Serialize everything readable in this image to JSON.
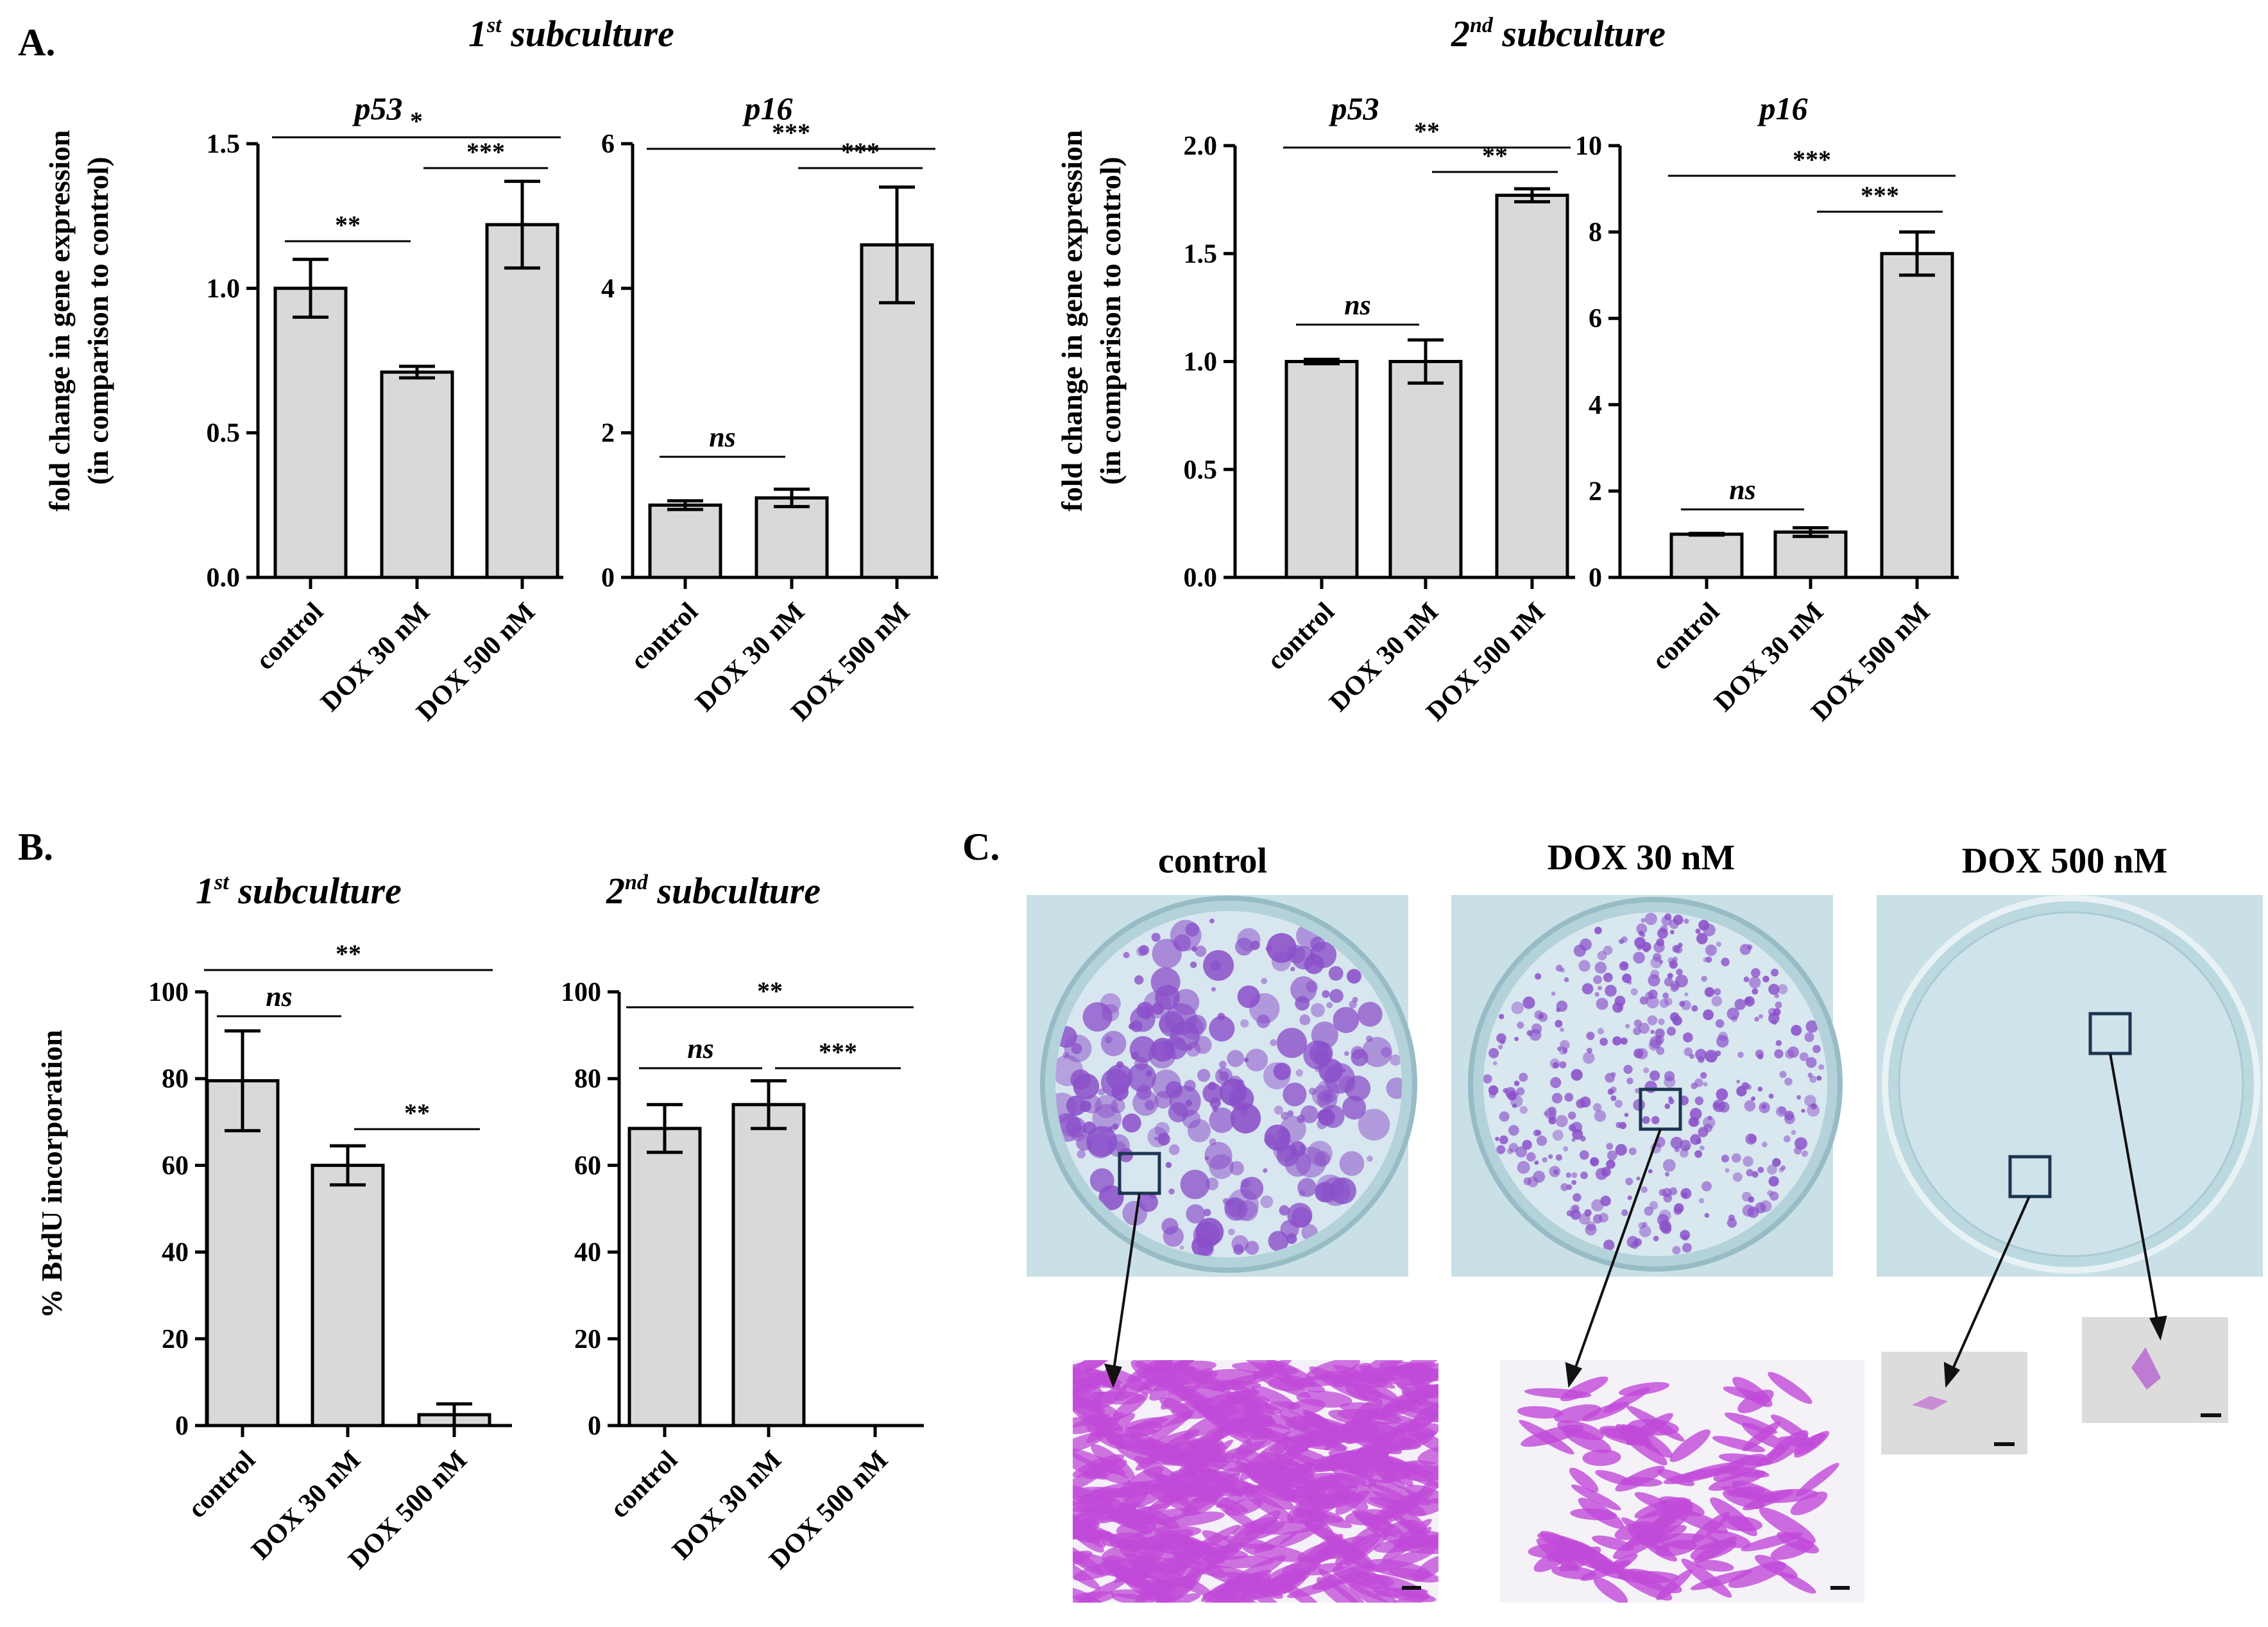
{
  "panel_labels": {
    "A": "A.",
    "B": "B.",
    "C": "C."
  },
  "subculture_titles": {
    "first": {
      "base": "1",
      "sup": "st",
      "rest": " subculture"
    },
    "second": {
      "base": "2",
      "sup": "nd",
      "rest": " subculture"
    }
  },
  "ylabels": {
    "A_line1": "fold change in gene expression",
    "A_line2": "(in comparison to control)",
    "B": "% BrdU incorporation"
  },
  "photo_titles": [
    "control",
    "DOX 30 nM",
    "DOX 500 nM"
  ],
  "colors": {
    "bar_fill": "#d9d9d9",
    "stroke": "#000000",
    "stain": "#8a4fc9",
    "dish_bg": "#c9e0e6",
    "micro": "#c04ad8",
    "box": "#1c3550"
  },
  "chart_data": [
    {
      "id": "A1_p53",
      "type": "bar",
      "title": "p53",
      "categories": [
        "control",
        "DOX 30 nM",
        "DOX 500 nM"
      ],
      "values": [
        1.0,
        0.71,
        1.22
      ],
      "errors": [
        0.1,
        0.02,
        0.15
      ],
      "ylim": [
        0,
        1.5
      ],
      "yticks": [
        0.0,
        0.5,
        1.0,
        1.5
      ],
      "ytick_labels": [
        "0.0",
        "0.5",
        "1.0",
        "1.5"
      ],
      "ylabel": "fold change in gene expression (in comparison to control)",
      "significance": [
        {
          "from": 0,
          "to": 2,
          "label": "*"
        },
        {
          "from": 0,
          "to": 1,
          "label": "**"
        },
        {
          "from": 1,
          "to": 2,
          "label": "***"
        }
      ]
    },
    {
      "id": "A1_p16",
      "type": "bar",
      "title": "p16",
      "categories": [
        "control",
        "DOX 30 nM",
        "DOX 500 nM"
      ],
      "values": [
        1.0,
        1.1,
        4.6
      ],
      "errors": [
        0.06,
        0.12,
        0.8
      ],
      "ylim": [
        0,
        6
      ],
      "yticks": [
        0,
        2,
        4,
        6
      ],
      "ytick_labels": [
        "0",
        "2",
        "4",
        "6"
      ],
      "significance": [
        {
          "from": 0,
          "to": 2,
          "label": "***"
        },
        {
          "from": 0,
          "to": 1,
          "label": "ns"
        },
        {
          "from": 1,
          "to": 2,
          "label": "***"
        }
      ]
    },
    {
      "id": "A2_p53",
      "type": "bar",
      "title": "p53",
      "categories": [
        "control",
        "DOX 30 nM",
        "DOX 500 nM"
      ],
      "values": [
        1.0,
        1.0,
        1.77
      ],
      "errors": [
        0.01,
        0.1,
        0.03
      ],
      "ylim": [
        0,
        2.0
      ],
      "yticks": [
        0.0,
        0.5,
        1.0,
        1.5,
        2.0
      ],
      "ytick_labels": [
        "0.0",
        "0.5",
        "1.0",
        "1.5",
        "2.0"
      ],
      "ylabel": "fold change in gene expression (in comparison to control)",
      "significance": [
        {
          "from": 0,
          "to": 2,
          "label": "**"
        },
        {
          "from": 0,
          "to": 1,
          "label": "ns"
        },
        {
          "from": 1,
          "to": 2,
          "label": "**"
        }
      ]
    },
    {
      "id": "A2_p16",
      "type": "bar",
      "title": "p16",
      "categories": [
        "control",
        "DOX 30 nM",
        "DOX 500 nM"
      ],
      "values": [
        1.0,
        1.05,
        7.5
      ],
      "errors": [
        0.02,
        0.1,
        0.5
      ],
      "ylim": [
        0,
        10
      ],
      "yticks": [
        0,
        2,
        4,
        6,
        8,
        10
      ],
      "ytick_labels": [
        "0",
        "2",
        "4",
        "6",
        "8",
        "10"
      ],
      "significance": [
        {
          "from": 0,
          "to": 2,
          "label": "***"
        },
        {
          "from": 0,
          "to": 1,
          "label": "ns"
        },
        {
          "from": 1,
          "to": 2,
          "label": "***"
        }
      ]
    },
    {
      "id": "B1",
      "type": "bar",
      "title": "1st subculture",
      "categories": [
        "control",
        "DOX 30 nM",
        "DOX 500 nM"
      ],
      "values": [
        79.5,
        60,
        2.5
      ],
      "errors": [
        11.5,
        4.5,
        2.5
      ],
      "ylim": [
        0,
        100
      ],
      "yticks": [
        0,
        20,
        40,
        60,
        80,
        100
      ],
      "ytick_labels": [
        "0",
        "20",
        "40",
        "60",
        "80",
        "100"
      ],
      "ylabel": "% BrdU incorporation",
      "significance": [
        {
          "from": 0,
          "to": 2,
          "label": "**"
        },
        {
          "from": 0,
          "to": 1,
          "label": "ns"
        },
        {
          "from": 1,
          "to": 2,
          "label": "**"
        }
      ]
    },
    {
      "id": "B2",
      "type": "bar",
      "title": "2nd subculture",
      "categories": [
        "control",
        "DOX 30 nM",
        "DOX 500 nM"
      ],
      "values": [
        68.5,
        74,
        0
      ],
      "errors": [
        5.5,
        5.5,
        0
      ],
      "ylim": [
        0,
        100
      ],
      "yticks": [
        0,
        20,
        40,
        60,
        80,
        100
      ],
      "ytick_labels": [
        "0",
        "20",
        "40",
        "60",
        "80",
        "100"
      ],
      "significance": [
        {
          "from": 0,
          "to": 2,
          "label": "**"
        },
        {
          "from": 0,
          "to": 1,
          "label": "ns"
        },
        {
          "from": 1,
          "to": 2,
          "label": "***"
        }
      ]
    }
  ]
}
